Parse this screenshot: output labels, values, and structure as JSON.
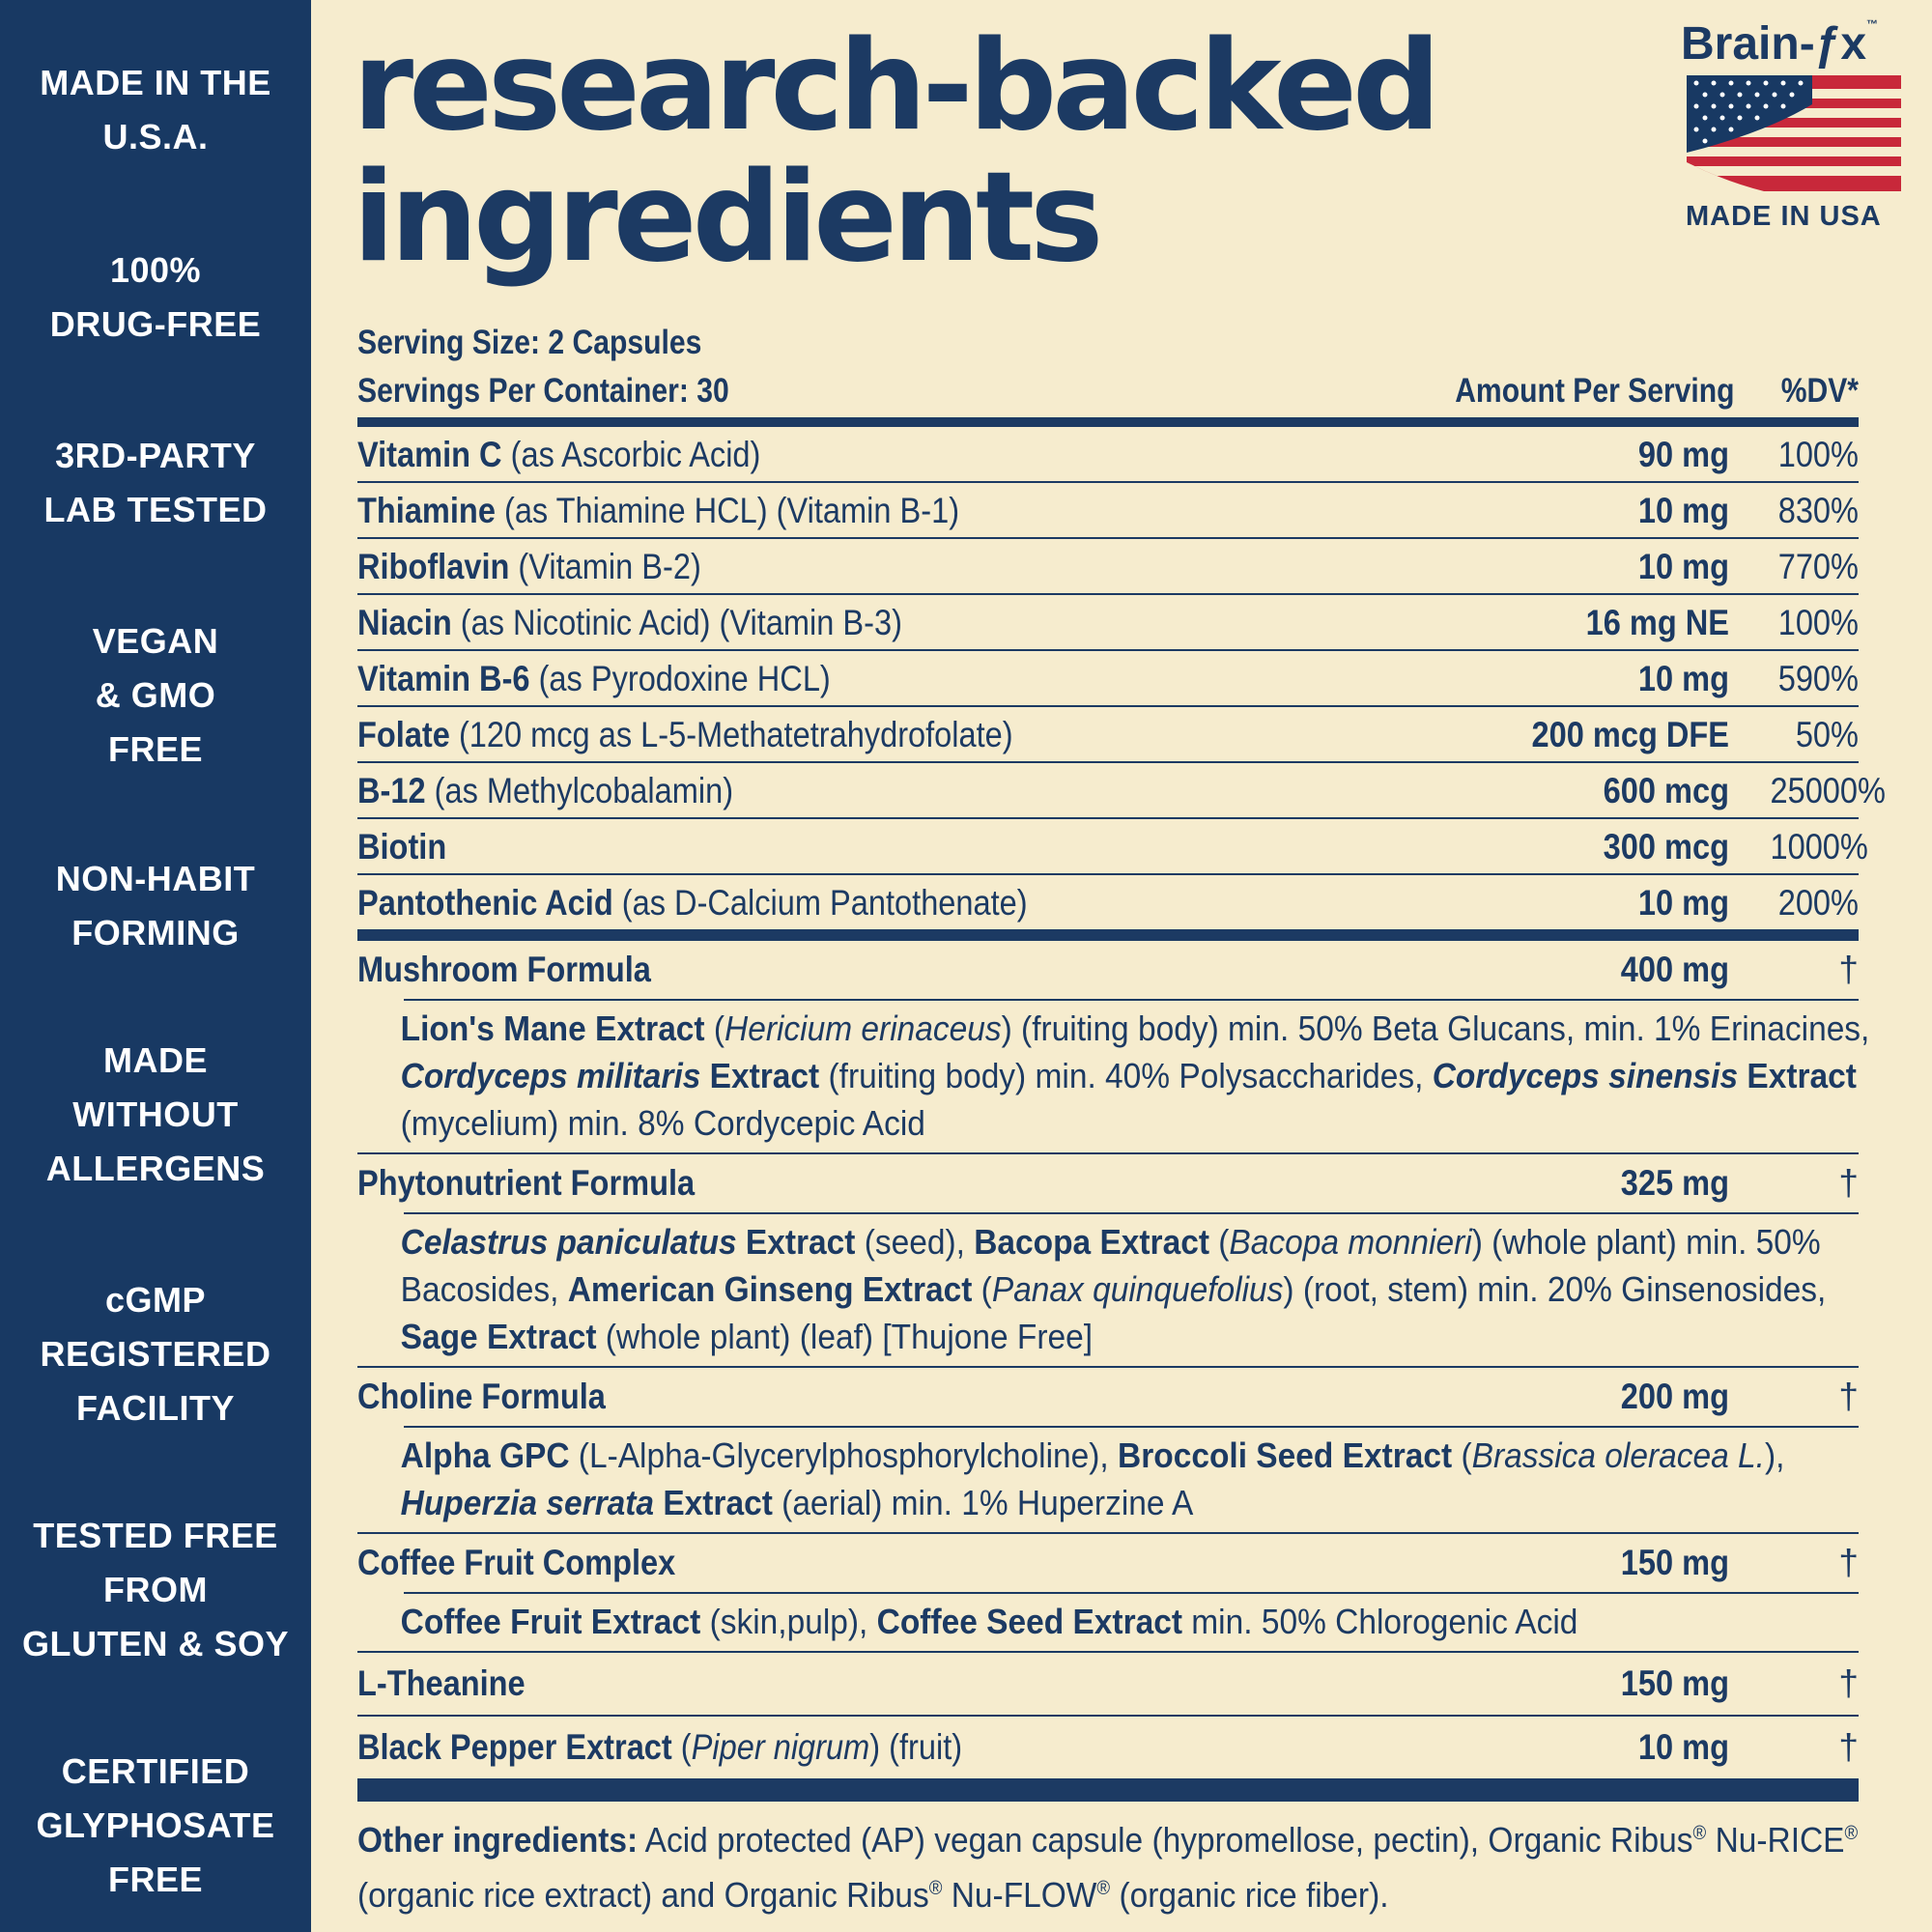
{
  "sidebar": {
    "badges": [
      [
        "MADE IN THE",
        "U.S.A."
      ],
      [
        "100%",
        "DRUG-FREE"
      ],
      [
        "3RD-PARTY",
        "LAB TESTED"
      ],
      [
        "VEGAN",
        "& GMO",
        "FREE"
      ],
      [
        "NON-HABIT",
        "FORMING"
      ],
      [
        "MADE",
        "WITHOUT",
        "ALLERGENS"
      ],
      [
        "cGMP",
        "REGISTERED",
        "FACILITY"
      ],
      [
        "TESTED FREE",
        "FROM",
        "GLUTEN & SOY"
      ],
      [
        "CERTIFIED",
        "GLYPHOSATE",
        "FREE"
      ]
    ]
  },
  "title": {
    "line1": "research-backed",
    "line2": "ingredients"
  },
  "logo": {
    "brand": "Brain-ƒx",
    "trademark": "™",
    "caption": "MADE IN USA"
  },
  "facts": {
    "serving_size": "Serving Size: 2 Capsules",
    "servings_per_container": "Servings Per Container: 30",
    "amount_header": "Amount Per Serving",
    "dv_header": "%DV*",
    "vitamins": [
      {
        "name": "Vitamin C",
        "detail": "(as Ascorbic Acid)",
        "amount": "90 mg",
        "dv": "100%"
      },
      {
        "name": "Thiamine",
        "detail": "(as Thiamine HCL) (Vitamin B-1)",
        "amount": "10 mg",
        "dv": "830%"
      },
      {
        "name": "Riboflavin",
        "detail": "(Vitamin B-2)",
        "amount": "10 mg",
        "dv": "770%"
      },
      {
        "name": "Niacin",
        "detail": "(as Nicotinic Acid) (Vitamin B-3)",
        "amount": "16 mg NE",
        "dv": "100%"
      },
      {
        "name": "Vitamin B-6",
        "detail": "(as Pyrodoxine HCL)",
        "amount": "10 mg",
        "dv": "590%"
      },
      {
        "name": "Folate",
        "detail": "(120 mcg as L-5-Methatetrahydrofolate)",
        "amount": "200 mcg DFE",
        "dv": "50%"
      },
      {
        "name": "B-12",
        "detail": "(as Methylcobalamin)",
        "amount": "600 mcg",
        "dv": "25000%"
      },
      {
        "name": "Biotin",
        "detail": "",
        "amount": "300 mcg",
        "dv": "1000%"
      },
      {
        "name": "Pantothenic Acid",
        "detail": "(as D-Calcium Pantothenate)",
        "amount": "10 mg",
        "dv": "200%"
      }
    ],
    "formulas": [
      {
        "name": "Mushroom Formula",
        "amount": "400 mg",
        "dv": "†",
        "parts": [
          {
            "t": "Lion's Mane Extract",
            "s": "b"
          },
          {
            "t": " (",
            "s": ""
          },
          {
            "t": "Hericium erinaceus",
            "s": "i"
          },
          {
            "t": ") (fruiting body) min. 50% Beta Glucans, min. 1% Erinacines, ",
            "s": ""
          },
          {
            "t": "Cordyceps militaris",
            "s": "bi"
          },
          {
            "t": " Extract",
            "s": "b"
          },
          {
            "t": " (fruiting body) min. 40% Polysaccharides, ",
            "s": ""
          },
          {
            "t": "Cordyceps sinensis",
            "s": "bi"
          },
          {
            "t": " Extract",
            "s": "b"
          },
          {
            "t": " (mycelium) min. 8% Cordycepic Acid",
            "s": ""
          }
        ]
      },
      {
        "name": "Phytonutrient Formula",
        "amount": "325 mg",
        "dv": "†",
        "parts": [
          {
            "t": "Celastrus paniculatus",
            "s": "bi"
          },
          {
            "t": " Extract",
            "s": "b"
          },
          {
            "t": " (seed), ",
            "s": ""
          },
          {
            "t": "Bacopa Extract",
            "s": "b"
          },
          {
            "t": " (",
            "s": ""
          },
          {
            "t": "Bacopa monnieri",
            "s": "i"
          },
          {
            "t": ") (whole plant) min. 50% Bacosides, ",
            "s": ""
          },
          {
            "t": "American Ginseng Extract",
            "s": "b"
          },
          {
            "t": " (",
            "s": ""
          },
          {
            "t": "Panax quinquefolius",
            "s": "i"
          },
          {
            "t": ") (root, stem) min. 20% Ginsenosides, ",
            "s": ""
          },
          {
            "t": "Sage Extract",
            "s": "b"
          },
          {
            "t": " (whole plant) (leaf) [Thujone Free]",
            "s": ""
          }
        ]
      },
      {
        "name": "Choline Formula",
        "amount": "200 mg",
        "dv": "†",
        "parts": [
          {
            "t": "Alpha GPC",
            "s": "b"
          },
          {
            "t": " (L-Alpha-Glycerylphosphorylcholine), ",
            "s": ""
          },
          {
            "t": "Broccoli Seed Extract",
            "s": "b"
          },
          {
            "t": " (",
            "s": ""
          },
          {
            "t": "Brassica oleracea L.",
            "s": "i"
          },
          {
            "t": "), ",
            "s": ""
          },
          {
            "t": "Huperzia serrata",
            "s": "bi"
          },
          {
            "t": " Extract",
            "s": "b"
          },
          {
            "t": " (aerial) min. 1% Huperzine A",
            "s": ""
          }
        ]
      },
      {
        "name": "Coffee Fruit Complex",
        "amount": "150 mg",
        "dv": "†",
        "parts": [
          {
            "t": "Coffee Fruit Extract",
            "s": "b"
          },
          {
            "t": " (skin,pulp), ",
            "s": ""
          },
          {
            "t": "Coffee Seed Extract",
            "s": "b"
          },
          {
            "t": " min. 50% Chlorogenic Acid",
            "s": ""
          }
        ]
      }
    ],
    "singles": [
      {
        "name": "L-Theanine",
        "extra": "",
        "amount": "150 mg",
        "dv": "†"
      },
      {
        "name": "Black Pepper Extract",
        "extra_open": " (",
        "extra_italic": "Piper nigrum",
        "extra_close": ") (fruit)",
        "amount": "10 mg",
        "dv": "†"
      }
    ],
    "other_label": "Other ingredients:",
    "other_text": [
      {
        "t": " Acid protected (AP) vegan capsule (hypromellose, pectin), Organic Ribus",
        "s": ""
      },
      {
        "t": "®",
        "s": "sup"
      },
      {
        "t": " Nu-RICE",
        "s": ""
      },
      {
        "t": "®",
        "s": "sup"
      },
      {
        "t": " (organic rice extract) and Organic Ribus",
        "s": ""
      },
      {
        "t": "®",
        "s": "sup"
      },
      {
        "t": " Nu-FLOW",
        "s": ""
      },
      {
        "t": "®",
        "s": "sup"
      },
      {
        "t": " (organic rice fiber).",
        "s": ""
      }
    ]
  },
  "colors": {
    "navy": "#183963",
    "cream": "#f6ecce",
    "red": "#c8283a"
  }
}
